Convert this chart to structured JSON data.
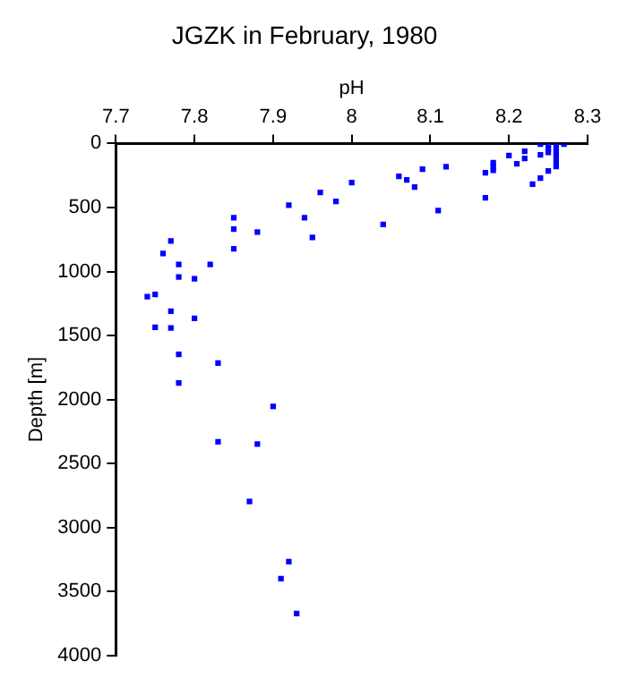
{
  "chart_data": {
    "type": "scatter",
    "title": "JGZK in February, 1980",
    "xlabel": "pH",
    "ylabel": "Depth [m]",
    "xlim": [
      7.7,
      8.3
    ],
    "xticks": [
      7.7,
      7.8,
      7.9,
      8,
      8.1,
      8.2,
      8.3
    ],
    "ylim": [
      4000,
      0
    ],
    "yticks": [
      0,
      500,
      1000,
      1500,
      2000,
      2500,
      3000,
      3500,
      4000
    ],
    "grid": false,
    "legend": false,
    "marker": "square",
    "series": [
      {
        "color": "#0000ff",
        "x": [
          8.0,
          7.98,
          7.96,
          7.94,
          7.92,
          7.95,
          7.88,
          7.85,
          7.85,
          7.85,
          7.82,
          7.77,
          7.76,
          7.78,
          7.78,
          7.8,
          7.74,
          7.75,
          7.77,
          7.8,
          7.75,
          7.77,
          7.78,
          7.83,
          7.78,
          7.9,
          7.83,
          7.88,
          7.87,
          7.92,
          7.91,
          7.93,
          8.04,
          8.06,
          8.07,
          8.08,
          8.09,
          8.11,
          8.12,
          8.17,
          8.17,
          8.18,
          8.18,
          8.18,
          8.2,
          8.21,
          8.22,
          8.22,
          8.23,
          8.24,
          8.24,
          8.24,
          8.25,
          8.25,
          8.25,
          8.25,
          8.26,
          8.26,
          8.26,
          8.26,
          8.26,
          8.27
        ],
        "values": [
          305,
          453,
          383,
          580,
          482,
          734,
          692,
          580,
          669,
          823,
          945,
          762,
          860,
          945,
          1043,
          1057,
          1197,
          1179,
          1310,
          1366,
          1436,
          1441,
          1647,
          1716,
          1871,
          2054,
          2330,
          2348,
          2797,
          3266,
          3400,
          3672,
          632,
          257,
          285,
          341,
          201,
          524,
          182,
          229,
          425,
          150,
          180,
          210,
          94,
          159,
          61,
          117,
          318,
          5,
          89,
          271,
          10,
          40,
          70,
          215,
          20,
          60,
          100,
          140,
          180,
          5
        ]
      }
    ]
  }
}
